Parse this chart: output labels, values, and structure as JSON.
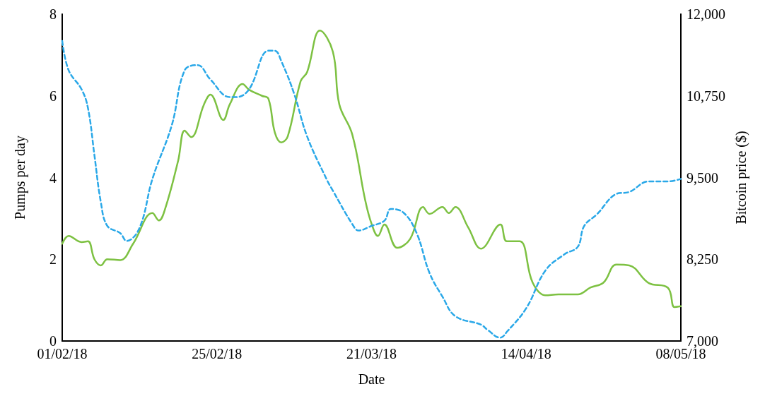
{
  "chart_data": {
    "type": "line",
    "xlabel": "Date",
    "ylabel": "Pumps per day",
    "y2label": "Bitcoin price ($)",
    "xlim": [
      "2018-02-01",
      "2018-05-08"
    ],
    "xticks": [
      {
        "value": "2018-02-01",
        "label": "01/02/18"
      },
      {
        "value": "2018-02-25",
        "label": "25/02/18"
      },
      {
        "value": "2018-03-21",
        "label": "21/03/18"
      },
      {
        "value": "2018-04-14",
        "label": "14/04/18"
      },
      {
        "value": "2018-05-08",
        "label": "08/05/18"
      }
    ],
    "ylim": [
      0,
      8
    ],
    "yticks": [
      0,
      2,
      4,
      6,
      8
    ],
    "y2lim": [
      7000,
      12000
    ],
    "y2ticks": [
      {
        "value": 7000,
        "label": "7,000"
      },
      {
        "value": 8250,
        "label": "8,250"
      },
      {
        "value": 9500,
        "label": "9,500"
      },
      {
        "value": 10750,
        "label": "10,750"
      },
      {
        "value": 12000,
        "label": "12,000"
      }
    ],
    "grid": false,
    "marker": "none",
    "series": [
      {
        "color": "#7dc142",
        "line_style": "solid",
        "x": [
          "2018-02-01",
          "2018-02-02",
          "2018-02-04",
          "2018-02-05",
          "2018-02-06",
          "2018-02-07",
          "2018-02-08",
          "2018-02-10",
          "2018-02-12",
          "2018-02-15",
          "2018-02-16",
          "2018-02-17",
          "2018-02-19",
          "2018-02-20",
          "2018-02-21",
          "2018-02-23",
          "2018-02-24",
          "2018-02-26",
          "2018-02-27",
          "2018-03-01",
          "2018-03-02",
          "2018-03-04",
          "2018-03-05",
          "2018-03-06",
          "2018-03-07",
          "2018-03-08",
          "2018-03-10",
          "2018-03-11",
          "2018-03-13",
          "2018-03-15",
          "2018-03-16",
          "2018-03-18",
          "2018-03-20",
          "2018-03-21",
          "2018-03-22",
          "2018-03-23",
          "2018-03-25",
          "2018-03-27",
          "2018-03-29",
          "2018-03-30",
          "2018-04-01",
          "2018-04-02",
          "2018-04-03",
          "2018-04-05",
          "2018-04-07",
          "2018-04-10",
          "2018-04-11",
          "2018-04-13",
          "2018-04-15",
          "2018-04-17",
          "2018-04-19",
          "2018-04-22",
          "2018-04-24",
          "2018-04-26",
          "2018-04-28",
          "2018-04-30",
          "2018-05-03",
          "2018-05-06",
          "2018-05-07",
          "2018-05-08"
        ],
        "values": [
          2.38,
          2.57,
          2.42,
          2.44,
          2.0,
          1.85,
          2.0,
          1.98,
          2.38,
          3.13,
          2.95,
          3.25,
          4.42,
          5.15,
          4.99,
          5.79,
          6.03,
          5.41,
          5.79,
          6.29,
          6.15,
          6.0,
          5.93,
          5.1,
          4.86,
          5.01,
          6.36,
          6.58,
          7.6,
          7.08,
          5.79,
          5.06,
          3.46,
          2.87,
          2.57,
          2.85,
          2.28,
          2.5,
          3.28,
          3.11,
          3.28,
          3.13,
          3.28,
          2.78,
          2.26,
          2.85,
          2.44,
          2.44,
          1.43,
          1.12,
          1.14,
          1.14,
          1.31,
          1.43,
          1.87,
          1.85,
          1.42,
          1.3,
          0.83,
          0.85
        ]
      },
      {
        "color": "#2aa8e8",
        "line_style": "dashed",
        "axis": "y2",
        "x": [
          "2018-02-01",
          "2018-02-02",
          "2018-02-04",
          "2018-02-05",
          "2018-02-06",
          "2018-02-07",
          "2018-02-08",
          "2018-02-10",
          "2018-02-11",
          "2018-02-13",
          "2018-02-15",
          "2018-02-18",
          "2018-02-20",
          "2018-02-22",
          "2018-02-24",
          "2018-02-27",
          "2018-02-28",
          "2018-03-02",
          "2018-03-05",
          "2018-03-06",
          "2018-03-07",
          "2018-03-09",
          "2018-03-11",
          "2018-03-14",
          "2018-03-15",
          "2018-03-18",
          "2018-03-19",
          "2018-03-21",
          "2018-03-23",
          "2018-03-24",
          "2018-03-26",
          "2018-03-28",
          "2018-03-30",
          "2018-04-01",
          "2018-04-03",
          "2018-04-07",
          "2018-04-08",
          "2018-04-10",
          "2018-04-11",
          "2018-04-14",
          "2018-04-17",
          "2018-04-20",
          "2018-04-22",
          "2018-04-23",
          "2018-04-25",
          "2018-04-28",
          "2018-04-30",
          "2018-05-03",
          "2018-05-06",
          "2018-05-08"
        ],
        "values": [
          11590,
          11140,
          10850,
          10560,
          9840,
          9120,
          8760,
          8650,
          8530,
          8730,
          9480,
          10300,
          11140,
          11220,
          11000,
          10730,
          10730,
          10850,
          11440,
          11440,
          11280,
          10780,
          10130,
          9480,
          9300,
          8790,
          8690,
          8760,
          8840,
          9020,
          8960,
          8650,
          8040,
          7680,
          7380,
          7250,
          7170,
          7050,
          7140,
          7500,
          8080,
          8330,
          8440,
          8760,
          8940,
          9250,
          9280,
          9440,
          9440,
          9480
        ]
      }
    ]
  }
}
